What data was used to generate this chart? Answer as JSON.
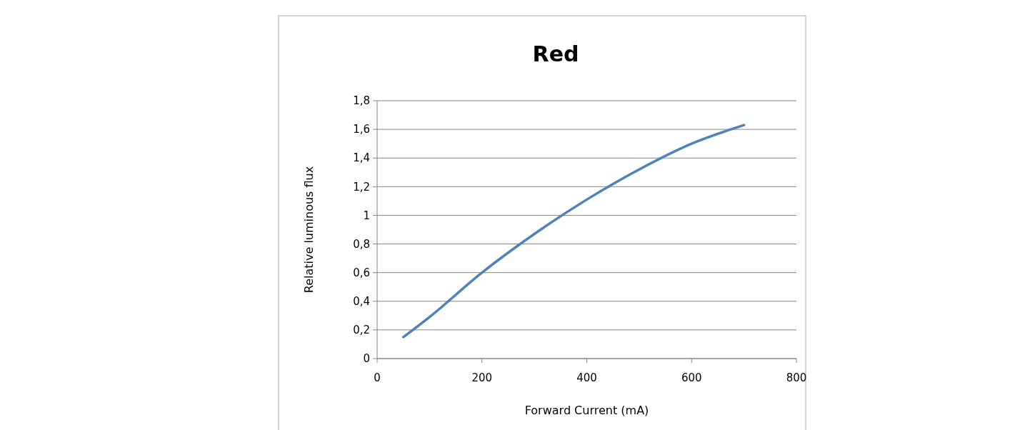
{
  "chart_data": {
    "type": "line",
    "title": "Red",
    "xlabel": "Forward Current (mA)",
    "ylabel": "Relative luminous flux",
    "x": [
      50,
      100,
      200,
      300,
      400,
      500,
      600,
      700
    ],
    "series": [
      {
        "color": "#4f81bd",
        "values": [
          0.15,
          0.29,
          0.6,
          0.87,
          1.11,
          1.32,
          1.5,
          1.63
        ]
      }
    ],
    "xlim": [
      0,
      800
    ],
    "xticks": [
      0,
      200,
      400,
      600,
      800
    ],
    "ylim": [
      0,
      1.8
    ],
    "yticks": [
      0,
      {
        "value": 0.2,
        "label": "0,2"
      },
      {
        "value": 0.4,
        "label": "0,4"
      },
      {
        "value": 0.6,
        "label": "0,6"
      },
      {
        "value": 0.8,
        "label": "0,8"
      },
      1,
      {
        "value": 1.2,
        "label": "1,2"
      },
      {
        "value": 1.4,
        "label": "1,4"
      },
      {
        "value": 1.6,
        "label": "1,6"
      },
      {
        "value": 1.8,
        "label": "1,8"
      }
    ],
    "grid": "y",
    "marker": "none",
    "line_style": "solid"
  }
}
